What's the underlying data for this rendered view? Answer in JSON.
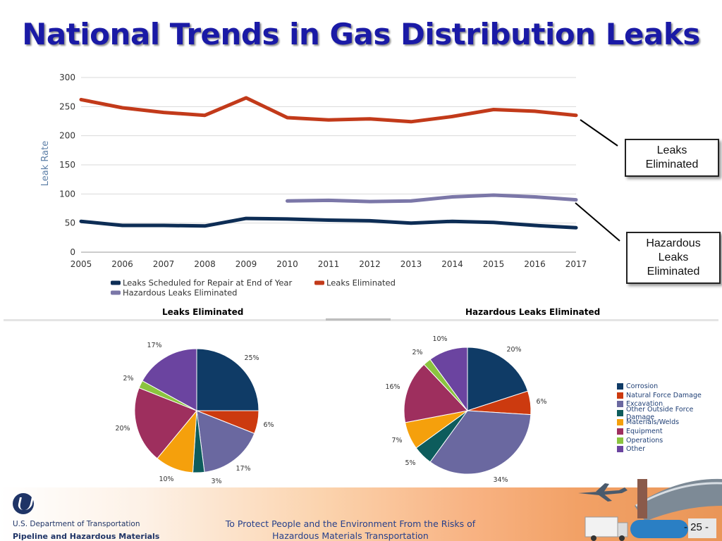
{
  "title": "National Trends in Gas Distribution Leaks",
  "chart_data": [
    {
      "type": "line",
      "x": [
        2005,
        2006,
        2007,
        2008,
        2009,
        2010,
        2011,
        2012,
        2013,
        2014,
        2015,
        2016,
        2017
      ],
      "ylabel": "Leak Rate",
      "ylim": [
        0,
        300
      ],
      "yticks": [
        0,
        50,
        100,
        150,
        200,
        250,
        300
      ],
      "grid": true,
      "legend_position": "bottom-left",
      "series": [
        {
          "name": "Leaks Scheduled for Repair at End of Year",
          "color": "#0d2d55",
          "values": [
            53,
            46,
            46,
            45,
            58,
            57,
            55,
            54,
            50,
            53,
            51,
            46,
            42
          ]
        },
        {
          "name": "Leaks Eliminated",
          "color": "#c23a1a",
          "values": [
            262,
            248,
            240,
            235,
            265,
            231,
            227,
            229,
            224,
            233,
            245,
            242,
            235
          ]
        },
        {
          "name": "Hazardous Leaks Eliminated",
          "color": "#7b77a8",
          "values": [
            null,
            null,
            null,
            null,
            null,
            88,
            89,
            87,
            88,
            95,
            98,
            95,
            90
          ]
        }
      ]
    },
    {
      "type": "pie",
      "title": "Leaks Eliminated",
      "categories": [
        "Corrosion",
        "Natural Force Damage",
        "Excavation",
        "Other Outside Force Damage",
        "Materials/Welds",
        "Equipment",
        "Operations",
        "Other"
      ],
      "values": [
        25,
        6,
        17,
        3,
        10,
        20,
        2,
        17
      ],
      "labels": [
        "25%",
        "6%",
        "17%",
        "3%",
        "10%",
        "20%",
        "2%",
        "17%"
      ]
    },
    {
      "type": "pie",
      "title": "Hazardous Leaks Eliminated",
      "categories": [
        "Corrosion",
        "Natural Force Damage",
        "Excavation",
        "Other Outside Force Damage",
        "Materials/Welds",
        "Equipment",
        "Operations",
        "Other"
      ],
      "values": [
        20,
        6,
        34,
        5,
        7,
        16,
        2,
        10
      ],
      "labels": [
        "20%",
        "6%",
        "34%",
        "5%",
        "7%",
        "16%",
        "2%",
        "10%"
      ]
    }
  ],
  "pie_legend": {
    "items": [
      "Corrosion",
      "Natural Force Damage",
      "Excavation",
      "Other Outside Force Damage",
      "Materials/Welds",
      "Equipment",
      "Operations",
      "Other"
    ],
    "colors": [
      "#0f3b66",
      "#cc3a0f",
      "#6a68a0",
      "#0d5c5c",
      "#f5a00c",
      "#9e2f5e",
      "#8bc43f",
      "#6b44a0"
    ]
  },
  "callouts": {
    "leaks": "Leaks\nEliminated",
    "hazardous": "Hazardous\nLeaks\nEliminated"
  },
  "footer": {
    "agency_line1": "U.S. Department of Transportation",
    "agency_line2": "Pipeline and Hazardous Materials",
    "tagline_line1": "To Protect People and the Environment From the Risks of",
    "tagline_line2": "Hazardous Materials Transportation",
    "page_number": "- 25 -"
  },
  "icons": [
    "usdot-logo-icon",
    "airplane-icon",
    "pipeline-icon",
    "truck-icon",
    "tank-car-icon"
  ]
}
